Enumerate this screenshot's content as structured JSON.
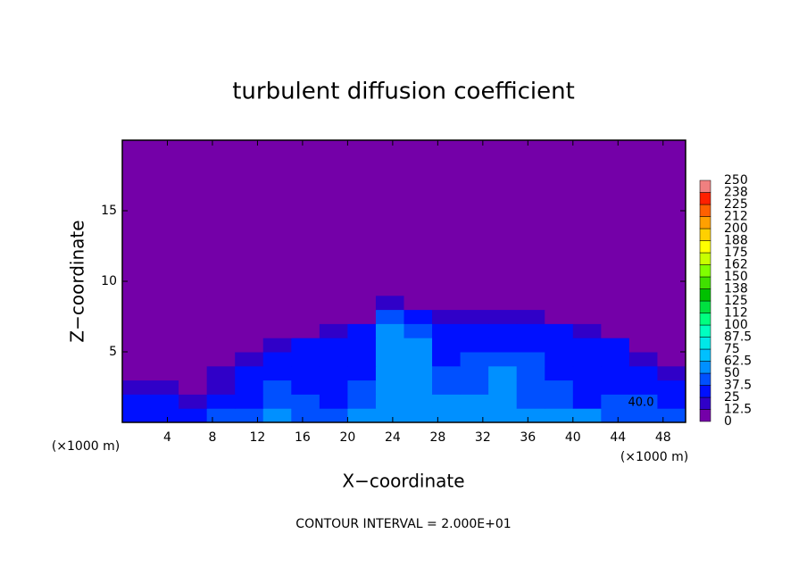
{
  "chart_data": {
    "type": "heatmap",
    "title": "turbulent diffusion coefficient",
    "x_label": "X−coordinate",
    "y_label": "Z−coordinate",
    "x_unit": "(×1000 m)",
    "x_unit_right": "(×1000 m)",
    "footer": "CONTOUR INTERVAL = 2.000E+01",
    "annotation": "40.0",
    "xlim": [
      0,
      50
    ],
    "ylim": [
      0,
      20
    ],
    "xticks": [
      4,
      8,
      12,
      16,
      20,
      24,
      28,
      32,
      36,
      40,
      44,
      48
    ],
    "yticks": [
      5,
      10,
      15
    ],
    "x_bins": [
      0,
      2.5,
      5,
      7.5,
      10,
      12.5,
      15,
      17.5,
      20,
      22.5,
      25,
      27.5,
      30,
      32.5,
      35,
      37.5,
      40,
      42.5,
      45,
      47.5,
      50
    ],
    "z_bins": [
      0,
      1,
      2,
      3,
      4,
      5,
      6,
      7,
      8,
      9,
      20
    ],
    "values": [
      [
        30,
        35,
        35,
        40,
        45,
        50,
        45,
        45,
        50,
        55,
        60,
        60,
        55,
        60,
        55,
        50,
        50,
        45,
        45,
        40
      ],
      [
        25,
        25,
        20,
        25,
        35,
        40,
        40,
        35,
        45,
        55,
        60,
        55,
        50,
        60,
        45,
        40,
        35,
        40,
        45,
        35
      ],
      [
        15,
        15,
        10,
        20,
        30,
        40,
        35,
        30,
        40,
        55,
        60,
        45,
        40,
        55,
        45,
        40,
        35,
        35,
        30,
        25
      ],
      [
        10,
        10,
        10,
        15,
        25,
        30,
        35,
        30,
        35,
        55,
        55,
        40,
        45,
        50,
        40,
        35,
        35,
        30,
        25,
        15
      ],
      [
        5,
        5,
        5,
        10,
        20,
        25,
        30,
        30,
        35,
        55,
        55,
        35,
        40,
        45,
        40,
        35,
        35,
        30,
        20,
        10
      ],
      [
        0,
        0,
        0,
        5,
        10,
        15,
        25,
        25,
        30,
        55,
        50,
        35,
        30,
        35,
        35,
        35,
        30,
        25,
        10,
        5
      ],
      [
        0,
        0,
        0,
        0,
        0,
        5,
        10,
        15,
        25,
        50,
        45,
        25,
        30,
        30,
        30,
        25,
        20,
        10,
        0,
        0
      ],
      [
        0,
        0,
        0,
        0,
        0,
        0,
        0,
        5,
        10,
        40,
        35,
        15,
        15,
        20,
        15,
        10,
        5,
        0,
        0,
        0
      ],
      [
        0,
        0,
        0,
        0,
        0,
        0,
        0,
        0,
        0,
        15,
        5,
        0,
        0,
        0,
        0,
        0,
        0,
        0,
        0,
        0
      ],
      [
        0,
        0,
        0,
        0,
        0,
        0,
        0,
        0,
        0,
        0,
        0,
        0,
        0,
        0,
        0,
        0,
        0,
        0,
        0,
        0
      ]
    ],
    "colorbar": {
      "levels": [
        0,
        12.5,
        25,
        37.5,
        50,
        62.5,
        75,
        87.5,
        100,
        {
          "value": 112.5,
          "label": "112"
        },
        125,
        {
          "value": 137.5,
          "label": "138"
        },
        150,
        {
          "value": 162.5,
          "label": "162"
        },
        175,
        {
          "value": 187.5,
          "label": "188"
        },
        200,
        {
          "value": 212.5,
          "label": "212"
        },
        225,
        {
          "value": 237.5,
          "label": "238"
        },
        250
      ],
      "colors": [
        "#7400a8",
        "#3000c8",
        "#0010ff",
        "#0050ff",
        "#0090ff",
        "#00c0ff",
        "#00e8e8",
        "#00ffc0",
        "#00ff80",
        "#00e040",
        "#00c000",
        "#40e000",
        "#80ff00",
        "#c8ff00",
        "#ffff00",
        "#ffd000",
        "#ffa000",
        "#ff6000",
        "#ff2000",
        "#f08080"
      ]
    }
  }
}
